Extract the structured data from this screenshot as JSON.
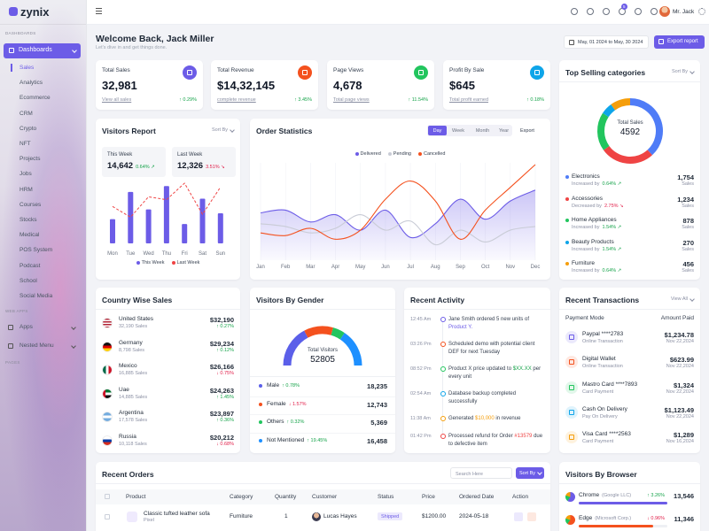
{
  "sidebar": {
    "logo": "zynix",
    "section_dashboards": "DASHBOARDS",
    "active": "Dashboards",
    "menu": [
      "Sales",
      "Analytics",
      "Ecommerce",
      "CRM",
      "Crypto",
      "NFT",
      "Projects",
      "Jobs",
      "HRM",
      "Courses",
      "Stocks",
      "Medical",
      "POS System",
      "Podcast",
      "School",
      "Social Media"
    ],
    "section_web_apps": "WEB APPS",
    "apps": "Apps",
    "nested_menu": "Nested Menu",
    "section_pages": "PAGES"
  },
  "header": {
    "notification_count": "5",
    "user": "Mr. Jack",
    "welcome": "Welcome Back, Jack Miller",
    "subtitle": "Let's dive in and get things done.",
    "date_range": "May, 01 2024 to May, 30 2024",
    "export_button": "Export report"
  },
  "stat_cards": [
    {
      "title": "Total Sales",
      "value": "32,981",
      "link": "View all sales",
      "change": "↑ 0.29%",
      "icon_color": "#6c5ce7"
    },
    {
      "title": "Total Revenue",
      "value": "$14,32,145",
      "link": "complete revenue",
      "change": "↑ 3.45%",
      "icon_color": "#f4511e"
    },
    {
      "title": "Page Views",
      "value": "4,678",
      "link": "Total page views",
      "change": "↑ 11.54%",
      "icon_color": "#22c55e"
    },
    {
      "title": "Profit By Sale",
      "value": "$645",
      "link": "Total profit earned",
      "change": "↑ 0.18%",
      "icon_color": "#0ea5e9"
    }
  ],
  "visitors_report": {
    "title": "Visitors Report",
    "sort": "Sort By",
    "this_week": {
      "label": "This Week",
      "value": "14,642",
      "change": "0.64% ↗",
      "change_color": "#16a34a"
    },
    "last_week": {
      "label": "Last Week",
      "value": "12,326",
      "change": "3.51% ↘",
      "change_color": "#e11d48"
    },
    "chart": {
      "type": "bar",
      "categories": [
        "Mon",
        "Tue",
        "Wed",
        "Thu",
        "Fri",
        "Sat",
        "Sun"
      ],
      "series": [
        {
          "name": "This Week",
          "color": "#6c5ce7",
          "values": [
            25,
            53,
            35,
            59,
            20,
            46,
            31
          ]
        },
        {
          "name": "Last Week",
          "color": "#ef4444",
          "values": [
            38,
            27,
            48,
            45,
            62,
            30,
            58
          ]
        }
      ]
    }
  },
  "order_statistics": {
    "title": "Order Statistics",
    "tabs": [
      "Day",
      "Week",
      "Month",
      "Year"
    ],
    "export": "Export",
    "chart": {
      "type": "line",
      "categories": [
        "Jan",
        "Feb",
        "Mar",
        "Apr",
        "May",
        "Jun",
        "Jul",
        "Aug",
        "Sep",
        "Oct",
        "Nov",
        "Dec"
      ],
      "series": [
        {
          "name": "Delivered",
          "color": "#6c5ce7",
          "values": [
            52,
            55,
            42,
            50,
            33,
            55,
            25,
            40,
            67,
            45,
            65,
            77
          ]
        },
        {
          "name": "Pending",
          "color": "#c9ccd6",
          "values": [
            40,
            37,
            30,
            35,
            50,
            33,
            43,
            17,
            33,
            20,
            33,
            37
          ]
        },
        {
          "name": "Cancelled",
          "color": "#f4511e",
          "values": [
            30,
            27,
            35,
            23,
            33,
            67,
            87,
            65,
            23,
            55,
            80,
            105
          ]
        }
      ]
    }
  },
  "top_selling": {
    "title": "Top Selling categories",
    "sort": "Sort By",
    "center_label": "Total Sales",
    "total": 4592,
    "unit": "Sales",
    "chart": {
      "type": "pie",
      "categories": [
        "Electronics",
        "Accessories",
        "Home Appliances",
        "Beauty Products",
        "Furniture"
      ],
      "values": [
        1754,
        1234,
        878,
        270,
        456
      ],
      "value_labels": [
        "1,754",
        "1,234",
        "878",
        "270",
        "456"
      ],
      "colors": [
        "#4f7cf7",
        "#ef4444",
        "#22c55e",
        "#0ea5e9",
        "#f59e0b"
      ],
      "trends": [
        "Increased by",
        "Decreased by",
        "Increased by",
        "Increased by",
        "Increased by"
      ],
      "changes": [
        "0.64% ↗",
        "2.75% ↘",
        "1.54% ↗",
        "1.54% ↗",
        "0.64% ↗"
      ],
      "change_colors": [
        "#16a34a",
        "#e11d48",
        "#16a34a",
        "#16a34a",
        "#16a34a"
      ]
    }
  },
  "country_sales": {
    "title": "Country Wise Sales",
    "rows": [
      {
        "country": "United States",
        "sales": "32,190 Sales",
        "amount": "$32,190",
        "change": "↑ 0.27%",
        "change_color": "#16a34a"
      },
      {
        "country": "Germany",
        "sales": "8,798 Sales",
        "amount": "$29,234",
        "change": "↑ 0.12%",
        "change_color": "#16a34a"
      },
      {
        "country": "Mexico",
        "sales": "16,885 Sales",
        "amount": "$26,166",
        "change": "↓ 0.75%",
        "change_color": "#e11d48"
      },
      {
        "country": "Uae",
        "sales": "14,885 Sales",
        "amount": "$24,263",
        "change": "↑ 1.45%",
        "change_color": "#16a34a"
      },
      {
        "country": "Argentina",
        "sales": "17,578 Sales",
        "amount": "$23,897",
        "change": "↑ 0.36%",
        "change_color": "#16a34a"
      },
      {
        "country": "Russia",
        "sales": "10,118 Sales",
        "amount": "$20,212",
        "change": "↓ 0.68%",
        "change_color": "#e11d48"
      }
    ]
  },
  "visitors_gender": {
    "title": "Visitors By Gender",
    "center_label": "Total Visitors",
    "total": 52805,
    "chart": {
      "type": "gauge",
      "categories": [
        "Male",
        "Female",
        "Others",
        "Not Mentioned"
      ],
      "values": [
        18235,
        12743,
        5369,
        16458
      ],
      "value_labels": [
        "18,235",
        "12,743",
        "5,369",
        "16,458"
      ],
      "colors": [
        "#5b5fe9",
        "#f4511e",
        "#22c55e",
        "#1e90ff"
      ],
      "changes": [
        "↑ 0.78%",
        "↓ 1.57%",
        "↑ 0.32%",
        "↑ 19.45%"
      ],
      "change_colors": [
        "#16a34a",
        "#e11d48",
        "#16a34a",
        "#16a34a"
      ]
    }
  },
  "recent_activity": {
    "title": "Recent Activity",
    "items": [
      {
        "time": "12:45 Am",
        "dot_color": "#6c5ce7",
        "parts": [
          {
            "text": "Jane Smith ordered 5 new units of "
          },
          {
            "text": "Product Y.",
            "color": "#6c5ce7"
          }
        ]
      },
      {
        "time": "03:26 Pm",
        "dot_color": "#f4511e",
        "parts": [
          {
            "text": "Scheduled demo with potential client DEF for next Tuesday"
          }
        ]
      },
      {
        "time": "08:52 Pm",
        "dot_color": "#22c55e",
        "parts": [
          {
            "text": "Product X price updated to "
          },
          {
            "text": "$XX.XX",
            "color": "#16a34a"
          },
          {
            "text": " per every unit"
          }
        ]
      },
      {
        "time": "02:54 Am",
        "dot_color": "#0ea5e9",
        "parts": [
          {
            "text": "Database backup completed successfully"
          }
        ]
      },
      {
        "time": "11:38 Am",
        "dot_color": "#f59e0b",
        "parts": [
          {
            "text": "Generated "
          },
          {
            "text": "$10,000",
            "color": "#f59e0b"
          },
          {
            "text": " in revenue"
          }
        ]
      },
      {
        "time": "01:42 Pm",
        "dot_color": "#ef4444",
        "parts": [
          {
            "text": "Processed refund for Order "
          },
          {
            "text": "#13579",
            "color": "#ef4444"
          },
          {
            "text": " due to defective item"
          }
        ]
      }
    ]
  },
  "recent_transactions": {
    "title": "Recent Transactions",
    "view_all": "View All",
    "headers": [
      "Payment Mode",
      "Amount Paid"
    ],
    "rows": [
      {
        "name": "Paypal ****2783",
        "type": "Online Transaction",
        "amount": "$1,234.78",
        "date": "Nov 22,2024",
        "icon_color": "#6c5ce7"
      },
      {
        "name": "Digital Wallet",
        "type": "Online Transaction",
        "amount": "$623.99",
        "date": "Nov 22,2024",
        "icon_color": "#f4511e"
      },
      {
        "name": "Mastro Card ****7893",
        "type": "Card Payment",
        "amount": "$1,324",
        "date": "Nov 22,2024",
        "icon_color": "#22c55e"
      },
      {
        "name": "Cash On Delivery",
        "type": "Pay On Delivery",
        "amount": "$1,123.49",
        "date": "Nov 22,2024",
        "icon_color": "#0ea5e9"
      },
      {
        "name": "Visa Card ****2563",
        "type": "Card Payment",
        "amount": "$1,289",
        "date": "Nov 16,2024",
        "icon_color": "#f59e0b"
      }
    ]
  },
  "recent_orders": {
    "title": "Recent Orders",
    "search_placeholder": "Search Here",
    "sort": "Sort By",
    "headers": [
      "Product",
      "Category",
      "Quantity",
      "Customer",
      "Status",
      "Price",
      "Ordered Date",
      "Action"
    ],
    "rows": [
      {
        "product": "Classic tufted leather sofa",
        "brand": "Pixel",
        "category": "Furniture",
        "quantity": "1",
        "customer": "Lucas Hayes",
        "status": "Shipped",
        "price": "$1200.00",
        "date": "2024-05-18"
      }
    ]
  },
  "visitors_browser": {
    "title": "Visitors By Browser",
    "rows": [
      {
        "name": "Chrome",
        "company": "(Google LLC)",
        "change": "↑ 3.26%",
        "change_color": "#16a34a",
        "value": 13546,
        "value_label": "13,546",
        "color": "#6c5ce7"
      },
      {
        "name": "Edge",
        "company": "(Microsoft Corp.)",
        "change": "↓ 0.96%",
        "change_color": "#e11d48",
        "value": 11346,
        "value_label": "11,346",
        "color": "#f4511e"
      }
    ]
  }
}
